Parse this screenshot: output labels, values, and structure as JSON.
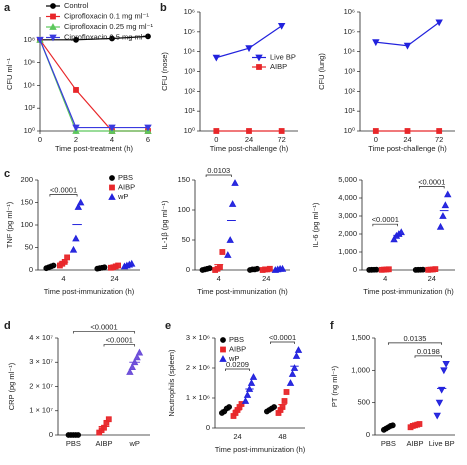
{
  "chart_data": [
    {
      "type": "line",
      "panel": "a",
      "x": [
        0,
        2,
        4,
        6
      ],
      "xlim": [
        0,
        6
      ],
      "xticks": [
        0,
        2,
        4,
        6
      ],
      "xlabel": "Time post-treatment (h)",
      "ylabel": "CFU ml⁻¹",
      "ylog": true,
      "ylim": [
        1,
        10000000000
      ],
      "yticks": [
        {
          "value": 1,
          "label": "10⁰"
        },
        {
          "value": 100,
          "label": "10²"
        },
        {
          "value": 10000,
          "label": "10⁴"
        },
        {
          "value": 1000000,
          "label": "10⁶"
        },
        {
          "value": 100000000,
          "label": "10⁸"
        }
      ],
      "legend": "top",
      "series": [
        {
          "name": "Control",
          "color": "#000000",
          "marker": "circle",
          "values": [
            100000000,
            100000000,
            130000000,
            200000000
          ]
        },
        {
          "name": "Ciprofloxacin 0.1 mg ml⁻¹",
          "color": "#e8272a",
          "marker": "square",
          "values": [
            100000000,
            4000,
            1,
            1
          ]
        },
        {
          "name": "Ciprofloxacin 0.25 mg ml⁻¹",
          "color": "#5cc85c",
          "marker": "triangle",
          "values": [
            100000000,
            1,
            1,
            1
          ]
        },
        {
          "name": "Ciprofloxacin 0.5 mg ml⁻¹",
          "color": "#3a3adf",
          "marker": "triangle-down",
          "values": [
            100000000,
            2,
            2,
            2
          ]
        }
      ]
    },
    {
      "type": "line",
      "panel": "b",
      "categories": [
        "0",
        "24",
        "72"
      ],
      "xlabel": "Time post-challenge (h)",
      "ylabel": "CFU (nose)",
      "ylog": true,
      "ylim": [
        1,
        1000000
      ],
      "yticks": [
        {
          "value": 1,
          "label": "10⁰"
        },
        {
          "value": 10,
          "label": "10¹"
        },
        {
          "value": 100,
          "label": "10²"
        },
        {
          "value": 1000,
          "label": "10³"
        },
        {
          "value": 10000,
          "label": "10⁴"
        },
        {
          "value": 100000,
          "label": "10⁵"
        },
        {
          "value": 1000000,
          "label": "10⁶"
        }
      ],
      "legend": "center right",
      "series": [
        {
          "name": "Live BP",
          "color": "#2222dd",
          "marker": "triangle-down",
          "values": [
            5000,
            15000,
            200000
          ]
        },
        {
          "name": "AIBP",
          "color": "#e8272a",
          "marker": "square",
          "values": [
            1,
            1,
            1
          ]
        }
      ]
    },
    {
      "type": "line",
      "categories": [
        "0",
        "24",
        "72"
      ],
      "xlabel": "Time post-challenge (h)",
      "ylabel": "CFU (lung)",
      "ylog": true,
      "ylim": [
        1,
        1000000
      ],
      "yticks": [
        {
          "value": 1,
          "label": "10⁰"
        },
        {
          "value": 10,
          "label": "10¹"
        },
        {
          "value": 100,
          "label": "10²"
        },
        {
          "value": 1000,
          "label": "10³"
        },
        {
          "value": 10000,
          "label": "10⁴"
        },
        {
          "value": 100000,
          "label": "10⁵"
        },
        {
          "value": 1000000,
          "label": "10⁶"
        }
      ],
      "series": [
        {
          "color": "#2222dd",
          "marker": "triangle-down",
          "values": [
            30000,
            20000,
            300000
          ]
        },
        {
          "color": "#e8272a",
          "marker": "square",
          "values": [
            1,
            1,
            1
          ]
        }
      ]
    },
    {
      "type": "dot",
      "panel": "c",
      "categories": [
        "4",
        "24"
      ],
      "xlabel": "Time post-immunization (h)",
      "ylabel": "TNF (pg ml⁻¹)",
      "ylim": [
        0,
        200
      ],
      "yticks": [
        0,
        50,
        100,
        150,
        200
      ],
      "legend": "upper right",
      "series": [
        {
          "name": "PBS",
          "color": "#000000",
          "marker": "circle",
          "values": [
            [
              4,
              6,
              8,
              10
            ],
            [
              3,
              4,
              5,
              6
            ]
          ],
          "means": [
            7,
            4.5
          ]
        },
        {
          "name": "AIBP",
          "color": "#e8272a",
          "marker": "square",
          "values": [
            [
              10,
              14,
              18,
              28
            ],
            [
              5,
              6,
              8,
              10
            ]
          ],
          "means": [
            17.5,
            7.25
          ]
        },
        {
          "name": "wP",
          "color": "#2222dd",
          "marker": "triangle",
          "values": [
            [
              45,
              70,
              140,
              150
            ],
            [
              8,
              10,
              12,
              14
            ]
          ],
          "means": [
            101,
            11
          ]
        }
      ],
      "annotations": [
        {
          "text": "<0.0001",
          "category": "4",
          "between": [
            0,
            2
          ]
        }
      ]
    },
    {
      "type": "dot",
      "categories": [
        "4",
        "24"
      ],
      "xlabel": "Time post-immunization (h)",
      "ylabel": "IL-1β (pg ml⁻¹)",
      "ylim": [
        0,
        150
      ],
      "yticks": [
        0,
        50,
        100,
        150
      ],
      "series": [
        {
          "color": "#000000",
          "marker": "circle",
          "values": [
            [
              0,
              1,
              2,
              3
            ],
            [
              0,
              1,
              1,
              2
            ]
          ],
          "means": [
            1.5,
            1
          ]
        },
        {
          "color": "#e8272a",
          "marker": "square",
          "values": [
            [
              0,
              2,
              5,
              30
            ],
            [
              0,
              1,
              1,
              2
            ]
          ],
          "means": [
            9,
            1
          ]
        },
        {
          "color": "#2222dd",
          "marker": "triangle",
          "values": [
            [
              25,
              50,
              110,
              145
            ],
            [
              0,
              1,
              2,
              2
            ]
          ],
          "means": [
            82.5,
            1.25
          ]
        }
      ],
      "annotations": [
        {
          "text": "0.0103",
          "category": "4",
          "between": [
            0,
            2
          ]
        }
      ]
    },
    {
      "type": "dot",
      "categories": [
        "4",
        "24"
      ],
      "xlabel": "Time post-immunization (h)",
      "ylabel": "IL-6 (pg ml⁻¹)",
      "ylim": [
        0,
        5000
      ],
      "yticks": [
        0,
        {
          "value": 1000,
          "label": "1,000"
        },
        {
          "value": 2000,
          "label": "2,000"
        },
        {
          "value": 3000,
          "label": "3,000"
        },
        {
          "value": 4000,
          "label": "4,000"
        },
        {
          "value": 5000,
          "label": "5,000"
        }
      ],
      "series": [
        {
          "color": "#000000",
          "marker": "circle",
          "values": [
            [
              5,
              10,
              15,
              20
            ],
            [
              5,
              10,
              15,
              20
            ]
          ],
          "means": [
            12.5,
            12.5
          ]
        },
        {
          "color": "#e8272a",
          "marker": "square",
          "values": [
            [
              10,
              20,
              30,
              40
            ],
            [
              10,
              20,
              30,
              50
            ]
          ],
          "means": [
            25,
            27.5
          ]
        },
        {
          "color": "#2222dd",
          "marker": "triangle",
          "values": [
            [
              1700,
              1900,
              2000,
              2100
            ],
            [
              2400,
              3000,
              3600,
              4200
            ]
          ],
          "means": [
            1925,
            3300
          ]
        }
      ],
      "annotations": [
        {
          "text": "<0.0001",
          "category": "4",
          "between": [
            0,
            2
          ]
        },
        {
          "text": "<0.0001",
          "category": "24",
          "between": [
            0,
            2
          ]
        }
      ]
    },
    {
      "type": "dot",
      "panel": "d",
      "categories": [
        "PBS",
        "AIBP",
        "wP"
      ],
      "ylabel": "CRP (pg ml⁻¹)",
      "ylim": [
        0,
        40000000
      ],
      "yticks": [
        0,
        {
          "value": 10000000,
          "label": "1 × 10⁷"
        },
        {
          "value": 20000000,
          "label": "2 × 10⁷"
        },
        {
          "value": 30000000,
          "label": "3 × 10⁷"
        },
        {
          "value": 40000000,
          "label": "4 × 10⁷"
        }
      ],
      "colors": [
        "#000000",
        "#e8272a",
        "#6a4bd8"
      ],
      "markers": [
        "circle",
        "square",
        "triangle"
      ],
      "values": [
        [
          0,
          0,
          0,
          0,
          0
        ],
        [
          1000000,
          2000000,
          3000000,
          5000000,
          6500000
        ],
        [
          26000000,
          28000000,
          30000000,
          32000000,
          34000000
        ]
      ],
      "means": [
        0,
        3500000,
        30000000
      ],
      "annotations": [
        {
          "text": "<0.0001",
          "between": [
            0,
            2
          ]
        },
        {
          "text": "<0.0001",
          "between": [
            1,
            2
          ]
        }
      ]
    },
    {
      "type": "dot",
      "panel": "e",
      "categories": [
        "24",
        "48"
      ],
      "xlabel": "Time post-immunization (h)",
      "ylabel": "Neutrophils (spleen)",
      "ylim": [
        0,
        3000000
      ],
      "yticks": [
        0,
        {
          "value": 1000000,
          "label": "1 × 10⁶"
        },
        {
          "value": 2000000,
          "label": "2 × 10⁶"
        },
        {
          "value": 3000000,
          "label": "3 × 10⁶"
        }
      ],
      "legend": "upper left",
      "series": [
        {
          "name": "PBS",
          "color": "#000000",
          "marker": "circle",
          "values": [
            [
              500000,
              550000,
              650000,
              700000
            ],
            [
              550000,
              600000,
              650000,
              700000
            ]
          ],
          "means": [
            600000,
            625000
          ]
        },
        {
          "name": "AIBP",
          "color": "#e8272a",
          "marker": "square",
          "values": [
            [
              400000,
              500000,
              600000,
              700000,
              800000
            ],
            [
              500000,
              600000,
              700000,
              900000,
              1200000
            ]
          ],
          "means": [
            600000,
            780000
          ]
        },
        {
          "name": "wP",
          "color": "#2222dd",
          "marker": "triangle",
          "values": [
            [
              900000,
              1100000,
              1300000,
              1500000,
              1700000
            ],
            [
              1500000,
              1800000,
              2000000,
              2400000,
              2600000
            ]
          ],
          "means": [
            1300000,
            2060000
          ]
        }
      ],
      "annotations": [
        {
          "text": "0.0209",
          "category": "24",
          "between": [
            0,
            2
          ]
        },
        {
          "text": "<0.0001",
          "category": "48",
          "between": [
            0,
            2
          ]
        }
      ]
    },
    {
      "type": "dot",
      "panel": "f",
      "categories": [
        "PBS",
        "AIBP",
        "Live BP"
      ],
      "ylabel": "PT (ng ml⁻¹)",
      "ylim": [
        0,
        1500
      ],
      "yticks": [
        0,
        500,
        {
          "value": 1000,
          "label": "1,000"
        },
        {
          "value": 1500,
          "label": "1,500"
        }
      ],
      "colors": [
        "#000000",
        "#e8272a",
        "#2222dd"
      ],
      "markers": [
        "circle",
        "square",
        "triangle-down"
      ],
      "values": [
        [
          80,
          100,
          120,
          140,
          150
        ],
        [
          120,
          140,
          150,
          160,
          170
        ],
        [
          300,
          500,
          700,
          1000,
          1100
        ]
      ],
      "means": [
        118,
        148,
        720
      ],
      "annotations": [
        {
          "text": "0.0135",
          "between": [
            0,
            2
          ]
        },
        {
          "text": "0.0198",
          "between": [
            1,
            2
          ]
        }
      ]
    }
  ]
}
